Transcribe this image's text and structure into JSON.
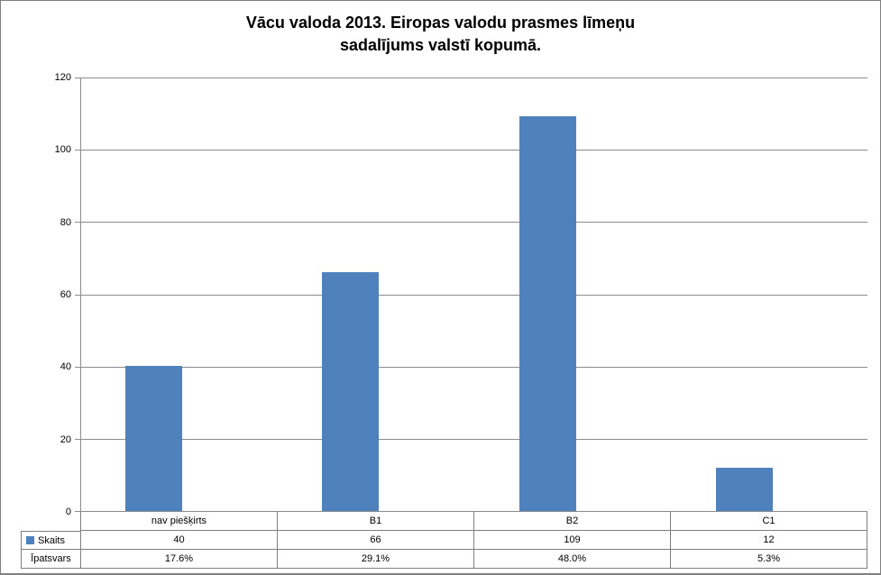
{
  "chart_data": {
    "type": "bar",
    "title": "Vācu valoda 2013. Eiropas valodu prasmes līmeņu sadalījums valstī kopumā.",
    "categories": [
      "nav piešķirts",
      "B1",
      "B2",
      "C1"
    ],
    "series": [
      {
        "name": "Skaits",
        "values": [
          40,
          66,
          109,
          12
        ],
        "plotted": true
      },
      {
        "name": "Īpatsvars",
        "values": [
          "17.6%",
          "29.1%",
          "48.0%",
          "5.3%"
        ],
        "plotted": false
      }
    ],
    "xlabel": "",
    "ylabel": "",
    "ylim": [
      0,
      120
    ],
    "ytick_step": 20,
    "grid": true,
    "legend_position": "data-table-left",
    "bar_color": "#4f81bd"
  },
  "title": {
    "line1": "Vācu valoda 2013. Eiropas valodu prasmes līmeņu",
    "line2": "sadalījums valstī kopumā."
  },
  "y_axis": {
    "ticks": [
      "120",
      "100",
      "80",
      "60",
      "40",
      "20",
      "0"
    ]
  },
  "table": {
    "categories": [
      "nav piešķirts",
      "B1",
      "B2",
      "C1"
    ],
    "rows": [
      {
        "label": "Skaits",
        "values": [
          "40",
          "66",
          "109",
          "12"
        ]
      },
      {
        "label": "Īpatsvars",
        "values": [
          "17.6%",
          "29.1%",
          "48.0%",
          "5.3%"
        ]
      }
    ]
  },
  "colors": {
    "bar": "#4f81bd",
    "grid": "#8c8c8c",
    "table_border": "#7f7f7f",
    "text": "#000000"
  }
}
